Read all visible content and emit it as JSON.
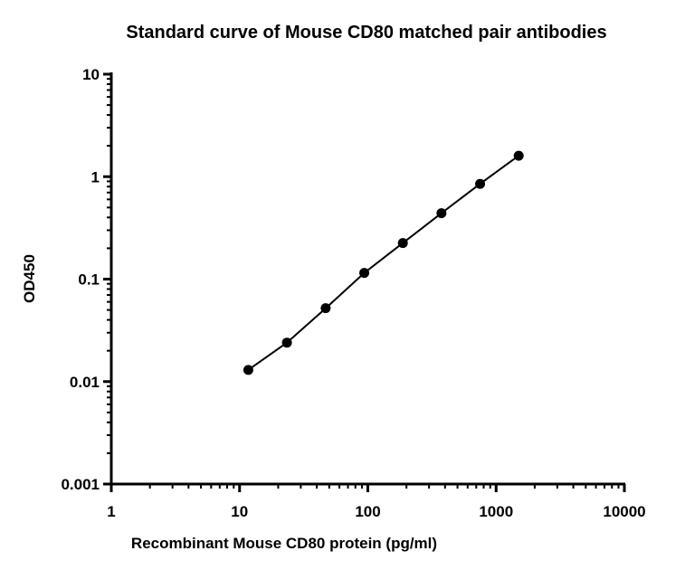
{
  "chart_data": {
    "type": "scatter",
    "title": "Standard curve of Mouse CD80 matched pair antibodies",
    "xlabel": "Recombinant Mouse CD80 protein (pg/ml)",
    "ylabel": "OD450",
    "x_scale": "log",
    "y_scale": "log",
    "xlim": [
      1,
      10000
    ],
    "ylim": [
      0.001,
      10
    ],
    "x_ticks": [
      "1",
      "10",
      "100",
      "1000",
      "10000"
    ],
    "y_ticks": [
      "0.001",
      "0.01",
      "0.1",
      "1",
      "10"
    ],
    "grid": false,
    "legend": "none",
    "series": [
      {
        "x": [
          11.7,
          23.4,
          46.9,
          93.8,
          187.5,
          375,
          750,
          1500
        ],
        "y": [
          0.013,
          0.024,
          0.052,
          0.115,
          0.225,
          0.44,
          0.85,
          1.6
        ],
        "line": true,
        "marker": "circle",
        "color": "#000000"
      }
    ]
  }
}
